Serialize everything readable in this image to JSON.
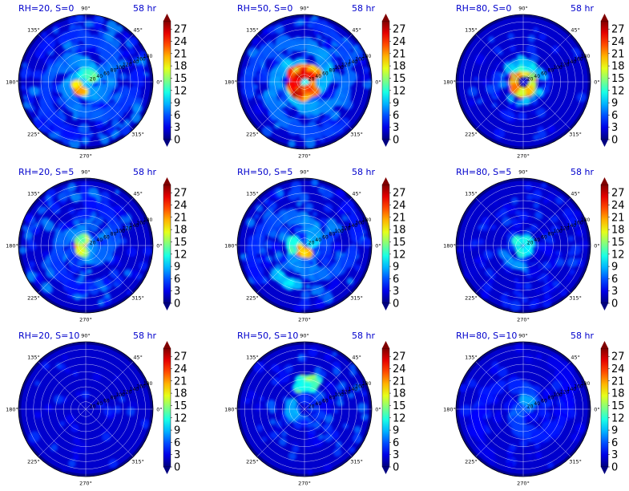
{
  "chart_data": [
    {
      "type": "heatmap",
      "title_left": "RH=20, S=0",
      "title_right": "58 hr",
      "pattern": "spiral-weak-core"
    },
    {
      "type": "heatmap",
      "title_left": "RH=50, S=0",
      "title_right": "58 hr",
      "pattern": "strong-eyewall"
    },
    {
      "type": "heatmap",
      "title_left": "RH=80, S=0",
      "title_right": "58 hr",
      "pattern": "compact-eyewall"
    },
    {
      "type": "heatmap",
      "title_left": "RH=20, S=5",
      "title_right": "58 hr",
      "pattern": "west-band"
    },
    {
      "type": "heatmap",
      "title_left": "RH=50, S=5",
      "title_right": "58 hr",
      "pattern": "southwest-arc"
    },
    {
      "type": "heatmap",
      "title_left": "RH=80, S=5",
      "title_right": "58 hr",
      "pattern": "weak-ring"
    },
    {
      "type": "heatmap",
      "title_left": "RH=20, S=10",
      "title_right": "58 hr",
      "pattern": "sparse"
    },
    {
      "type": "heatmap",
      "title_left": "RH=50, S=10",
      "title_right": "58 hr",
      "pattern": "north-cluster"
    },
    {
      "type": "heatmap",
      "title_left": "RH=80, S=10",
      "title_right": "58 hr",
      "pattern": "weak-spiral"
    }
  ],
  "angle_ticks": [
    "0°",
    "45°",
    "90°",
    "135°",
    "180°",
    "225°",
    "270°",
    "315°"
  ],
  "radial_ticks": [
    "20",
    "40",
    "60",
    "80",
    "100",
    "120",
    "140",
    "160",
    "180"
  ],
  "colorbar": {
    "ticks": [
      "0",
      "3",
      "6",
      "9",
      "12",
      "15",
      "18",
      "21",
      "24",
      "27"
    ],
    "min": 0,
    "max": 29,
    "colormap": "jet",
    "extend": "both"
  },
  "colors": {
    "title": "#0000cc",
    "grid": "#ffffff",
    "background": "#00008f"
  }
}
